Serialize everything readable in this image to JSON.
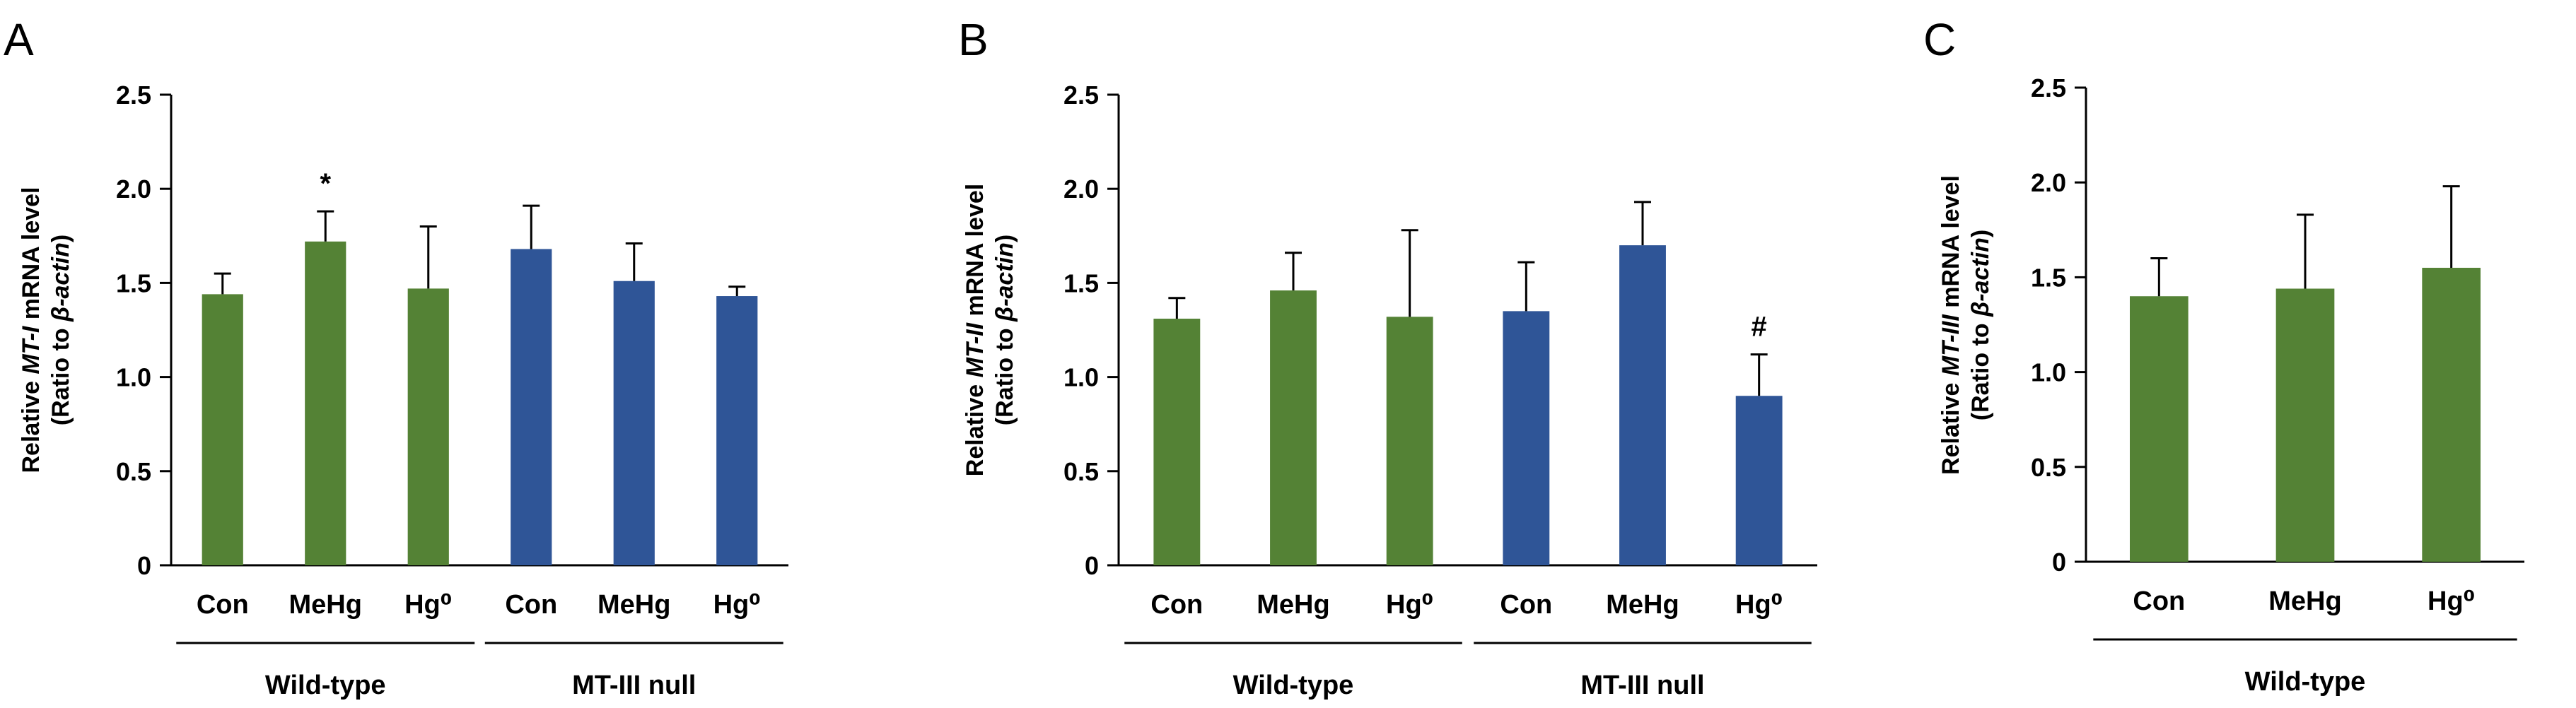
{
  "colors": {
    "wild_type": "#548235",
    "mt3_null": "#2f5597"
  },
  "chart_data": [
    {
      "type": "bar",
      "panel": "A",
      "ylabel": {
        "line1_pre": "Relative ",
        "line1_gene": "MT-I",
        "line1_post": " mRNA level",
        "line2_pre": "(Ratio to ",
        "line2_gene": "β-actin",
        "line2_post": ")"
      },
      "ylim": [
        0,
        2.5
      ],
      "yticks": [
        "0",
        "0.5",
        "1.0",
        "1.5",
        "2.0",
        "2.5"
      ],
      "categories": [
        "Con",
        "MeHg",
        "Hg⁰",
        "Con",
        "MeHg",
        "Hg⁰"
      ],
      "values": [
        1.44,
        1.72,
        1.47,
        1.68,
        1.51,
        1.43
      ],
      "errors": [
        0.11,
        0.16,
        0.33,
        0.23,
        0.2,
        0.05
      ],
      "groups": [
        {
          "name": "Wild-type",
          "start": 0,
          "end": 2
        },
        {
          "name": "MT-III null",
          "start": 3,
          "end": 5
        }
      ],
      "bar_groups": [
        0,
        0,
        0,
        1,
        1,
        1
      ],
      "annotations": [
        {
          "index": 1,
          "text": "*"
        }
      ]
    },
    {
      "type": "bar",
      "panel": "B",
      "ylabel": {
        "line1_pre": "Relative ",
        "line1_gene": "MT-II",
        "line1_post": " mRNA level",
        "line2_pre": "(Ratio to ",
        "line2_gene": "β-actin",
        "line2_post": ")"
      },
      "ylim": [
        0,
        2.5
      ],
      "yticks": [
        "0",
        "0.5",
        "1.0",
        "1.5",
        "2.0",
        "2.5"
      ],
      "categories": [
        "Con",
        "MeHg",
        "Hg⁰",
        "Con",
        "MeHg",
        "Hg⁰"
      ],
      "values": [
        1.31,
        1.46,
        1.32,
        1.35,
        1.7,
        0.9
      ],
      "errors": [
        0.11,
        0.2,
        0.46,
        0.26,
        0.23,
        0.22
      ],
      "groups": [
        {
          "name": "Wild-type",
          "start": 0,
          "end": 2
        },
        {
          "name": "MT-III null",
          "start": 3,
          "end": 5
        }
      ],
      "bar_groups": [
        0,
        0,
        0,
        1,
        1,
        1
      ],
      "annotations": [
        {
          "index": 5,
          "text": "#"
        }
      ]
    },
    {
      "type": "bar",
      "panel": "C",
      "ylabel": {
        "line1_pre": "Relative ",
        "line1_gene": "MT-III",
        "line1_post": " mRNA level",
        "line2_pre": "(Ratio to ",
        "line2_gene": "β-actin",
        "line2_post": ")"
      },
      "ylim": [
        0,
        2.5
      ],
      "yticks": [
        "0",
        "0.5",
        "1.0",
        "1.5",
        "2.0",
        "2.5"
      ],
      "categories": [
        "Con",
        "MeHg",
        "Hg⁰"
      ],
      "values": [
        1.4,
        1.44,
        1.55
      ],
      "errors": [
        0.2,
        0.39,
        0.43
      ],
      "groups": [
        {
          "name": "Wild-type",
          "start": 0,
          "end": 2
        }
      ],
      "bar_groups": [
        0,
        0,
        0
      ],
      "annotations": []
    }
  ]
}
